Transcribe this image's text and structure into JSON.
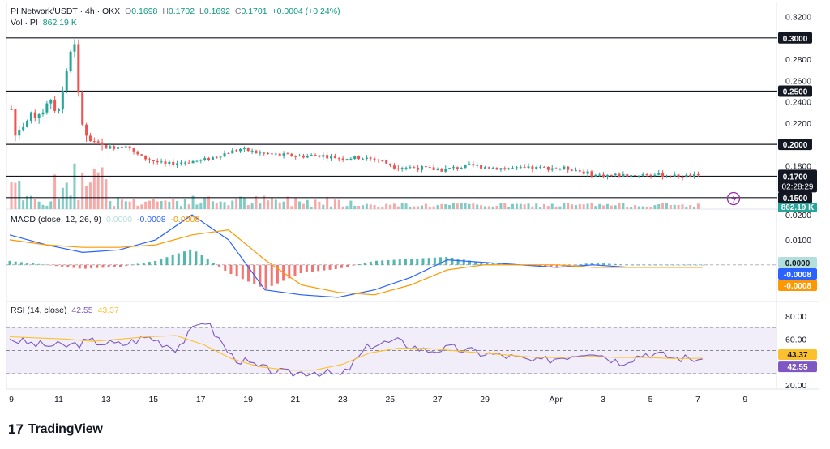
{
  "header": {
    "symbol": "PI Network/USDT · 4h · OKX",
    "o_label": "O",
    "o_val": "0.1698",
    "h_label": "H",
    "h_val": "0.1702",
    "l_label": "L",
    "l_val": "0.1692",
    "c_label": "C",
    "c_val": "0.1701",
    "change": "+0.0004 (+0.24%)",
    "vol_label": "Vol · PI",
    "vol_val": "862.19 K"
  },
  "macd_legend": {
    "label": "MACD (close, 12, 26, 9)",
    "v1": "0.0000",
    "v2": "-0.0008",
    "v3": "-0.0008"
  },
  "rsi_legend": {
    "label": "RSI (14, close)",
    "v1": "42.55",
    "v2": "43.37"
  },
  "footer": {
    "logo": "17",
    "brand": "TradingView"
  },
  "colors": {
    "up": "#26a69a",
    "down": "#ef5350",
    "macd": "#2962ff",
    "signal": "#ff9800",
    "rsi": "#7e57c2",
    "rsi_ma": "#fbc02d",
    "rsi_band": "#ede7f6"
  },
  "chart_data": [
    {
      "type": "candlestick",
      "title": "PI Network/USDT · 4h · OKX",
      "x_ticks": [
        "9",
        "11",
        "13",
        "15",
        "17",
        "19",
        "21",
        "23",
        "25",
        "27",
        "29",
        "Apr",
        "3",
        "5",
        "7",
        "9"
      ],
      "y_ticks": [
        "0.3200",
        "0.2800",
        "0.2600",
        "0.2400",
        "0.2200",
        "0.1800"
      ],
      "ylim": [
        0.1415,
        0.3265
      ],
      "horizontal_levels": [
        {
          "value": 0.3,
          "label": "0.3000"
        },
        {
          "value": 0.25,
          "label": "0.2500"
        },
        {
          "value": 0.2,
          "label": "0.2000"
        },
        {
          "value": 0.1701,
          "label": "0.1701",
          "sublabel": "02:28:29"
        },
        {
          "value": 0.17,
          "label": "0.1700"
        },
        {
          "value": 0.15,
          "label": "0.1500"
        }
      ],
      "last_price": "0.1701",
      "countdown": "02:28:29",
      "approx_close_path": [
        [
          0,
          0.233
        ],
        [
          0.05,
          0.208
        ],
        [
          0.1,
          0.215
        ],
        [
          0.2,
          0.222
        ],
        [
          0.3,
          0.228
        ],
        [
          0.4,
          0.232
        ],
        [
          0.5,
          0.238
        ],
        [
          0.6,
          0.232
        ],
        [
          0.65,
          0.245
        ],
        [
          0.7,
          0.262
        ],
        [
          0.75,
          0.28
        ],
        [
          0.8,
          0.298
        ],
        [
          0.82,
          0.3
        ],
        [
          0.84,
          0.275
        ],
        [
          0.88,
          0.24
        ],
        [
          0.92,
          0.222
        ],
        [
          0.98,
          0.205
        ],
        [
          1.1,
          0.198
        ],
        [
          1.3,
          0.197
        ],
        [
          1.5,
          0.2
        ],
        [
          1.6,
          0.192
        ],
        [
          1.7,
          0.188
        ],
        [
          2.0,
          0.181
        ],
        [
          2.2,
          0.183
        ],
        [
          2.5,
          0.185
        ],
        [
          2.8,
          0.192
        ],
        [
          3.0,
          0.196
        ],
        [
          3.2,
          0.192
        ],
        [
          3.5,
          0.19
        ],
        [
          3.8,
          0.189
        ],
        [
          4.0,
          0.19
        ],
        [
          4.3,
          0.187
        ],
        [
          4.6,
          0.188
        ],
        [
          4.8,
          0.185
        ],
        [
          5.0,
          0.179
        ],
        [
          5.3,
          0.178
        ],
        [
          5.6,
          0.176
        ],
        [
          6.0,
          0.18
        ],
        [
          6.3,
          0.178
        ],
        [
          6.6,
          0.177
        ],
        [
          7.0,
          0.178
        ],
        [
          7.3,
          0.177
        ],
        [
          7.6,
          0.171
        ],
        [
          8.0,
          0.171
        ],
        [
          8.3,
          0.172
        ],
        [
          8.6,
          0.17
        ],
        [
          9.0,
          0.1701
        ]
      ]
    },
    {
      "type": "bar",
      "title": "Vol · PI",
      "last_value": "862.19 K",
      "notes": "volume histogram, tallest bars around day 13"
    },
    {
      "type": "line",
      "title": "MACD (close, 12, 26, 9)",
      "y_ticks": [
        "0.0200",
        "0.0100"
      ],
      "ylim": [
        -0.014,
        0.021
      ],
      "last_values": {
        "histogram": "0.0000",
        "macd": "-0.0008",
        "signal": "-0.0008"
      },
      "series": [
        {
          "name": "MACD",
          "values": [
            0.012,
            0.008,
            0.005,
            0.006,
            0.01,
            0.02,
            0.01,
            -0.01,
            -0.012,
            -0.013,
            -0.01,
            -0.005,
            0.002,
            0.001,
            0.0,
            -0.001,
            0.0,
            -0.001,
            -0.001,
            -0.001
          ]
        },
        {
          "name": "Signal",
          "values": [
            0.01,
            0.008,
            0.007,
            0.007,
            0.008,
            0.012,
            0.014,
            0.002,
            -0.008,
            -0.011,
            -0.012,
            -0.008,
            -0.002,
            0.0,
            0.0,
            0.0,
            -0.001,
            -0.001,
            -0.001,
            -0.001
          ]
        }
      ]
    },
    {
      "type": "line",
      "title": "RSI (14, close)",
      "y_ticks": [
        "80.00",
        "60.00",
        "20.00"
      ],
      "ylim": [
        18,
        87
      ],
      "band": [
        30,
        70
      ],
      "last_values": {
        "rsi": "42.55",
        "ma": "43.37"
      },
      "series": [
        {
          "name": "RSI",
          "values": [
            60,
            55,
            54,
            58,
            55,
            62,
            52,
            78,
            45,
            35,
            30,
            32,
            28,
            55,
            58,
            50,
            52,
            48,
            45,
            40,
            45,
            50,
            40,
            48,
            44,
            42.55
          ]
        },
        {
          "name": "MA",
          "values": [
            62,
            61,
            60,
            58,
            60,
            62,
            63,
            55,
            43,
            36,
            33,
            33,
            38,
            48,
            52,
            52,
            50,
            48,
            46,
            44,
            44,
            45,
            44,
            44,
            43,
            43.37
          ]
        }
      ]
    }
  ]
}
